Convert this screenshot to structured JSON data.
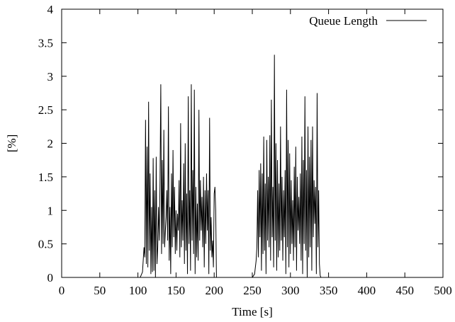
{
  "chart_data": {
    "type": "line",
    "title": "",
    "xlabel": "Time [s]",
    "ylabel": "[%]",
    "xlim": [
      0,
      500
    ],
    "ylim": [
      0,
      4
    ],
    "x_ticks": [
      "0",
      "50",
      "100",
      "150",
      "200",
      "250",
      "300",
      "350",
      "400",
      "450",
      "500"
    ],
    "y_ticks": [
      "0",
      "0.5",
      "1",
      "1.5",
      "2",
      "2.5",
      "3",
      "3.5",
      "4"
    ],
    "grid": false,
    "legend_position": "top-right",
    "series": [
      {
        "name": "Queue Length",
        "color": "#000000",
        "points": [
          [
            0,
            0
          ],
          [
            103,
            0
          ],
          [
            106,
            0.08
          ],
          [
            108,
            0.45
          ],
          [
            109,
            0.3
          ],
          [
            110,
            2.35
          ],
          [
            111,
            0.2
          ],
          [
            112,
            1.95
          ],
          [
            113,
            0.15
          ],
          [
            114,
            2.62
          ],
          [
            115,
            0.4
          ],
          [
            116,
            1.55
          ],
          [
            117,
            0.05
          ],
          [
            118,
            1.05
          ],
          [
            119,
            0.08
          ],
          [
            120,
            1.78
          ],
          [
            121,
            0.1
          ],
          [
            122,
            1.3
          ],
          [
            123,
            0.0
          ],
          [
            124,
            1.8
          ],
          [
            125,
            0.2
          ],
          [
            126,
            0.45
          ],
          [
            127,
            1.05
          ],
          [
            128,
            0.55
          ],
          [
            129,
            1.45
          ],
          [
            130,
            2.88
          ],
          [
            131,
            0.35
          ],
          [
            132,
            1.75
          ],
          [
            133,
            0.5
          ],
          [
            134,
            2.2
          ],
          [
            135,
            0.45
          ],
          [
            136,
            0.7
          ],
          [
            137,
            0.9
          ],
          [
            138,
            1.3
          ],
          [
            139,
            0.55
          ],
          [
            140,
            2.55
          ],
          [
            141,
            0.25
          ],
          [
            142,
            1.05
          ],
          [
            143,
            0.05
          ],
          [
            144,
            1.55
          ],
          [
            145,
            0.45
          ],
          [
            146,
            1.9
          ],
          [
            147,
            0.6
          ],
          [
            148,
            1.35
          ],
          [
            149,
            0.35
          ],
          [
            150,
            1.0
          ],
          [
            151,
            0.4
          ],
          [
            152,
            0.95
          ],
          [
            153,
            0.7
          ],
          [
            154,
            1.45
          ],
          [
            155,
            0.3
          ],
          [
            156,
            2.3
          ],
          [
            157,
            0.45
          ],
          [
            158,
            1.15
          ],
          [
            159,
            0.55
          ],
          [
            160,
            1.7
          ],
          [
            161,
            0.2
          ],
          [
            162,
            2.0
          ],
          [
            163,
            0.4
          ],
          [
            164,
            1.25
          ],
          [
            165,
            0.05
          ],
          [
            166,
            2.7
          ],
          [
            167,
            0.5
          ],
          [
            168,
            1.3
          ],
          [
            169,
            0.1
          ],
          [
            170,
            2.88
          ],
          [
            171,
            0.55
          ],
          [
            172,
            1.6
          ],
          [
            173,
            0.35
          ],
          [
            174,
            2.8
          ],
          [
            175,
            0.05
          ],
          [
            176,
            1.35
          ],
          [
            177,
            0.3
          ],
          [
            178,
            1.1
          ],
          [
            179,
            0.25
          ],
          [
            180,
            2.5
          ],
          [
            181,
            0.55
          ],
          [
            182,
            1.45
          ],
          [
            183,
            0.7
          ],
          [
            184,
            1.2
          ],
          [
            185,
            0.45
          ],
          [
            186,
            1.5
          ],
          [
            187,
            0.15
          ],
          [
            188,
            1.3
          ],
          [
            189,
            0.5
          ],
          [
            190,
            1.55
          ],
          [
            191,
            0.7
          ],
          [
            192,
            1.3
          ],
          [
            193,
            0.05
          ],
          [
            194,
            2.38
          ],
          [
            195,
            0.4
          ],
          [
            196,
            0.9
          ],
          [
            197,
            0.3
          ],
          [
            198,
            0.55
          ],
          [
            199,
            0.15
          ],
          [
            200,
            1.25
          ],
          [
            201,
            1.35
          ],
          [
            202,
            1.0
          ],
          [
            203,
            0.0
          ],
          [
            250,
            0
          ],
          [
            253,
            0.05
          ],
          [
            255,
            0.25
          ],
          [
            256,
            0.45
          ],
          [
            257,
            1.3
          ],
          [
            258,
            0.3
          ],
          [
            259,
            1.6
          ],
          [
            260,
            0.6
          ],
          [
            261,
            1.7
          ],
          [
            262,
            0.1
          ],
          [
            263,
            1.55
          ],
          [
            264,
            0.35
          ],
          [
            265,
            2.1
          ],
          [
            266,
            0.4
          ],
          [
            267,
            1.4
          ],
          [
            268,
            0.05
          ],
          [
            269,
            2.05
          ],
          [
            270,
            0.55
          ],
          [
            271,
            1.5
          ],
          [
            272,
            0.45
          ],
          [
            273,
            2.12
          ],
          [
            274,
            0.25
          ],
          [
            275,
            2.65
          ],
          [
            276,
            0.6
          ],
          [
            277,
            1.35
          ],
          [
            278,
            0.15
          ],
          [
            279,
            3.32
          ],
          [
            280,
            0.55
          ],
          [
            281,
            2.0
          ],
          [
            282,
            0.1
          ],
          [
            283,
            1.75
          ],
          [
            284,
            0.3
          ],
          [
            285,
            1.4
          ],
          [
            286,
            0.4
          ],
          [
            287,
            2.25
          ],
          [
            288,
            0.55
          ],
          [
            289,
            1.5
          ],
          [
            290,
            0.25
          ],
          [
            291,
            1.3
          ],
          [
            292,
            0.6
          ],
          [
            293,
            1.6
          ],
          [
            294,
            0.05
          ],
          [
            295,
            2.8
          ],
          [
            296,
            0.45
          ],
          [
            297,
            2.05
          ],
          [
            298,
            0.15
          ],
          [
            299,
            1.85
          ],
          [
            300,
            0.35
          ],
          [
            301,
            1.45
          ],
          [
            302,
            0.5
          ],
          [
            303,
            1.15
          ],
          [
            304,
            0.25
          ],
          [
            305,
            1.65
          ],
          [
            306,
            0.45
          ],
          [
            307,
            1.95
          ],
          [
            308,
            0.1
          ],
          [
            309,
            1.5
          ],
          [
            310,
            0.7
          ],
          [
            311,
            1.2
          ],
          [
            312,
            0.5
          ],
          [
            313,
            1.55
          ],
          [
            314,
            0.25
          ],
          [
            315,
            2.1
          ],
          [
            316,
            0.05
          ],
          [
            317,
            1.75
          ],
          [
            318,
            0.5
          ],
          [
            319,
            2.7
          ],
          [
            320,
            0.4
          ],
          [
            321,
            1.6
          ],
          [
            322,
            0.0
          ],
          [
            323,
            2.25
          ],
          [
            324,
            0.3
          ],
          [
            325,
            1.8
          ],
          [
            326,
            0.45
          ],
          [
            327,
            2.05
          ],
          [
            328,
            0.1
          ],
          [
            329,
            2.25
          ],
          [
            330,
            0.6
          ],
          [
            331,
            1.45
          ],
          [
            332,
            0.8
          ],
          [
            333,
            1.35
          ],
          [
            334,
            0.05
          ],
          [
            335,
            2.75
          ],
          [
            336,
            0.45
          ],
          [
            337,
            1.3
          ],
          [
            338,
            0.2
          ],
          [
            339,
            0.03
          ],
          [
            340,
            0.0
          ],
          [
            500,
            0
          ]
        ]
      }
    ]
  }
}
